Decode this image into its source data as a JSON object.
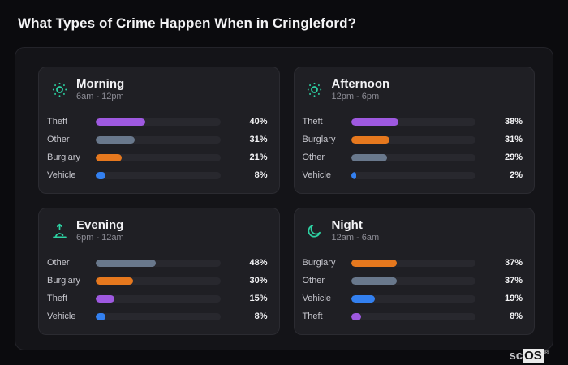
{
  "title": "What Types of Crime Happen When in Cringleford?",
  "brand": {
    "prefix": "sc",
    "boxed": "OS",
    "registered": "®"
  },
  "colors": {
    "accent_icon": "#2dd2a3",
    "bar_track": "#28282e",
    "crime_colors": {
      "Theft": "#9e59e0",
      "Other": "#69788c",
      "Burglary": "#e6781e",
      "Vehicle": "#3380f0"
    }
  },
  "chart_data": [
    {
      "type": "bar",
      "orientation": "horizontal",
      "title": "Morning",
      "subtitle": "6am - 12pm",
      "icon": "morning-sun-icon",
      "xlim": [
        0,
        100
      ],
      "categories": [
        "Theft",
        "Other",
        "Burglary",
        "Vehicle"
      ],
      "values": [
        40,
        31,
        21,
        8
      ],
      "value_labels": [
        "40%",
        "31%",
        "21%",
        "8%"
      ]
    },
    {
      "type": "bar",
      "orientation": "horizontal",
      "title": "Afternoon",
      "subtitle": "12pm - 6pm",
      "icon": "afternoon-sun-icon",
      "xlim": [
        0,
        100
      ],
      "categories": [
        "Theft",
        "Burglary",
        "Other",
        "Vehicle"
      ],
      "values": [
        38,
        31,
        29,
        2
      ],
      "value_labels": [
        "38%",
        "31%",
        "29%",
        "2%"
      ]
    },
    {
      "type": "bar",
      "orientation": "horizontal",
      "title": "Evening",
      "subtitle": "6pm - 12am",
      "icon": "sunrise-arrow-icon",
      "xlim": [
        0,
        100
      ],
      "categories": [
        "Other",
        "Burglary",
        "Theft",
        "Vehicle"
      ],
      "values": [
        48,
        30,
        15,
        8
      ],
      "value_labels": [
        "48%",
        "30%",
        "15%",
        "8%"
      ]
    },
    {
      "type": "bar",
      "orientation": "horizontal",
      "title": "Night",
      "subtitle": "12am - 6am",
      "icon": "crescent-moon-icon",
      "xlim": [
        0,
        100
      ],
      "categories": [
        "Burglary",
        "Other",
        "Vehicle",
        "Theft"
      ],
      "values": [
        37,
        37,
        19,
        8
      ],
      "value_labels": [
        "37%",
        "37%",
        "19%",
        "8%"
      ]
    }
  ]
}
